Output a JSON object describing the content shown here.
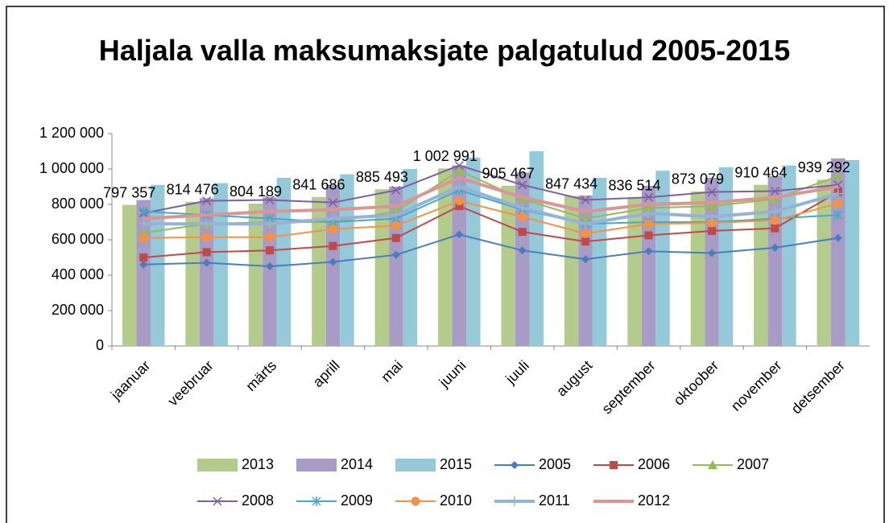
{
  "chart_data": {
    "type": "combo",
    "title": "Haljala valla maksumaksjate palgatulud 2005-2015",
    "categories": [
      "jaanuar",
      "veebruar",
      "märts",
      "aprill",
      "mai",
      "juuni",
      "juuli",
      "august",
      "september",
      "oktoober",
      "november",
      "detsember"
    ],
    "ylim": [
      0,
      1200000
    ],
    "yticks": [
      0,
      {
        "value": 200000,
        "label": "200 000"
      },
      {
        "value": 400000,
        "label": "400 000"
      },
      {
        "value": 600000,
        "label": "600 000"
      },
      {
        "value": 800000,
        "label": "800 000"
      },
      {
        "value": 1000000,
        "label": "1 000 000"
      },
      {
        "value": 1200000,
        "label": "1 200 000"
      }
    ],
    "series": [
      {
        "name": "2013",
        "type": "bar",
        "color": "#b3cc8c",
        "values": [
          797357,
          814476,
          804189,
          841686,
          885493,
          1002991,
          905467,
          847434,
          836514,
          873079,
          910464,
          939292
        ],
        "value_labels": [
          "797 357",
          "814 476",
          "804 189",
          "841 686",
          "885 493",
          "1 002 991",
          "905 467",
          "847 434",
          "836 514",
          "873 079",
          "910 464",
          "939 292"
        ]
      },
      {
        "name": "2014",
        "type": "bar",
        "color": "#a89bc6",
        "values": [
          825000,
          835000,
          840000,
          910000,
          900000,
          1020000,
          980000,
          850000,
          905000,
          950000,
          960000,
          1060000
        ]
      },
      {
        "name": "2015",
        "type": "bar",
        "color": "#93c9d9",
        "values": [
          910000,
          920000,
          950000,
          970000,
          1000000,
          1065000,
          1100000,
          950000,
          990000,
          1010000,
          1020000,
          1050000
        ]
      },
      {
        "name": "2005",
        "type": "line",
        "marker": "diamond",
        "color": "#4a7ebb",
        "values": [
          460000,
          470000,
          450000,
          475000,
          515000,
          630000,
          540000,
          490000,
          535000,
          525000,
          555000,
          610000
        ]
      },
      {
        "name": "2006",
        "type": "line",
        "marker": "square",
        "color": "#be4b48",
        "values": [
          500000,
          530000,
          540000,
          565000,
          610000,
          790000,
          645000,
          590000,
          625000,
          650000,
          665000,
          870000
        ]
      },
      {
        "name": "2007",
        "type": "line",
        "marker": "triangle",
        "color": "#98b954",
        "values": [
          640000,
          690000,
          700000,
          700000,
          760000,
          990000,
          830000,
          720000,
          780000,
          790000,
          830000,
          960000
        ]
      },
      {
        "name": "2008",
        "type": "line",
        "marker": "x",
        "color": "#7d60a0",
        "values": [
          750000,
          820000,
          825000,
          810000,
          880000,
          1020000,
          910000,
          825000,
          840000,
          870000,
          875000,
          910000
        ]
      },
      {
        "name": "2009",
        "type": "line",
        "marker": "star",
        "color": "#46aac5",
        "values": [
          760000,
          740000,
          720000,
          700000,
          720000,
          880000,
          770000,
          690000,
          700000,
          700000,
          720000,
          740000
        ]
      },
      {
        "name": "2010",
        "type": "line",
        "marker": "circle",
        "color": "#f69240",
        "values": [
          610000,
          615000,
          615000,
          660000,
          680000,
          820000,
          730000,
          635000,
          690000,
          695000,
          710000,
          805000
        ]
      },
      {
        "name": "2011",
        "type": "line",
        "marker": "plus",
        "color": "#95b3d7",
        "values": [
          690000,
          690000,
          690000,
          720000,
          740000,
          900000,
          780000,
          690000,
          750000,
          730000,
          760000,
          860000
        ]
      },
      {
        "name": "2012",
        "type": "line",
        "marker": "none",
        "color": "#d99694",
        "values": [
          720000,
          740000,
          760000,
          770000,
          790000,
          950000,
          840000,
          760000,
          800000,
          810000,
          840000,
          900000
        ]
      }
    ]
  }
}
